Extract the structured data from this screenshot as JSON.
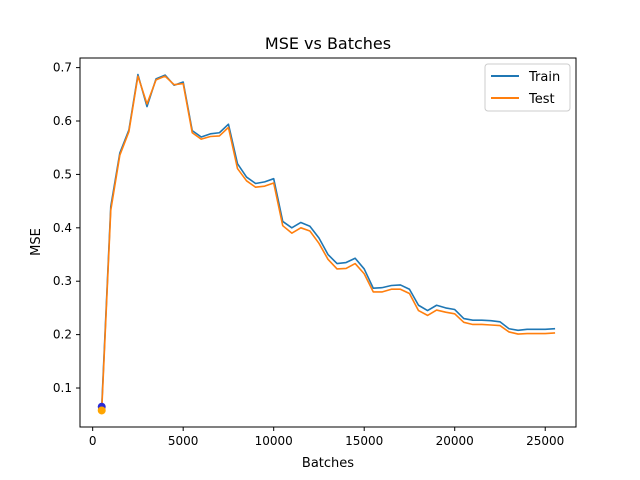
{
  "chart_data": {
    "type": "line",
    "title": "MSE vs Batches",
    "xlabel": "Batches",
    "ylabel": "MSE",
    "xlim": [
      -700,
      26700
    ],
    "ylim": [
      0.027,
      0.718
    ],
    "xticks": [
      0,
      5000,
      10000,
      15000,
      20000,
      25000
    ],
    "xtick_labels": [
      "0",
      "5000",
      "10000",
      "15000",
      "20000",
      "25000"
    ],
    "yticks": [
      0.1,
      0.2,
      0.3,
      0.4,
      0.5,
      0.6,
      0.7
    ],
    "ytick_labels": [
      "0.1",
      "0.2",
      "0.3",
      "0.4",
      "0.5",
      "0.6",
      "0.7"
    ],
    "grid": false,
    "legend": {
      "position": "top-right"
    },
    "series": [
      {
        "name": "Train",
        "color": "#1f77b4",
        "x": [
          500,
          1000,
          1500,
          2000,
          2500,
          3000,
          3500,
          4000,
          4500,
          5000,
          5500,
          6000,
          6500,
          7000,
          7500,
          8000,
          8500,
          9000,
          9500,
          10000,
          10500,
          11000,
          11500,
          12000,
          12500,
          13000,
          13500,
          14000,
          14500,
          15000,
          15500,
          16000,
          16500,
          17000,
          17500,
          18000,
          18500,
          19000,
          19500,
          20000,
          20500,
          21000,
          21500,
          22000,
          22500,
          23000,
          23500,
          24000,
          24500,
          25000,
          25500
        ],
        "y": [
          0.065,
          0.44,
          0.54,
          0.583,
          0.687,
          0.627,
          0.679,
          0.686,
          0.667,
          0.673,
          0.582,
          0.57,
          0.576,
          0.578,
          0.594,
          0.52,
          0.495,
          0.483,
          0.486,
          0.492,
          0.412,
          0.4,
          0.41,
          0.403,
          0.381,
          0.35,
          0.333,
          0.335,
          0.343,
          0.323,
          0.287,
          0.288,
          0.292,
          0.293,
          0.285,
          0.255,
          0.245,
          0.255,
          0.25,
          0.247,
          0.23,
          0.227,
          0.227,
          0.226,
          0.224,
          0.211,
          0.208,
          0.21,
          0.21,
          0.21,
          0.211
        ]
      },
      {
        "name": "Test",
        "color": "#ff7f0e",
        "x": [
          500,
          1000,
          1500,
          2000,
          2500,
          3000,
          3500,
          4000,
          4500,
          5000,
          5500,
          6000,
          6500,
          7000,
          7500,
          8000,
          8500,
          9000,
          9500,
          10000,
          10500,
          11000,
          11500,
          12000,
          12500,
          13000,
          13500,
          14000,
          14500,
          15000,
          15500,
          16000,
          16500,
          17000,
          17500,
          18000,
          18500,
          19000,
          19500,
          20000,
          20500,
          21000,
          21500,
          22000,
          22500,
          23000,
          23500,
          24000,
          24500,
          25000,
          25500
        ],
        "y": [
          0.058,
          0.433,
          0.536,
          0.58,
          0.684,
          0.632,
          0.677,
          0.684,
          0.668,
          0.67,
          0.578,
          0.566,
          0.571,
          0.572,
          0.588,
          0.511,
          0.488,
          0.476,
          0.478,
          0.484,
          0.404,
          0.39,
          0.4,
          0.394,
          0.371,
          0.341,
          0.323,
          0.324,
          0.333,
          0.314,
          0.28,
          0.28,
          0.285,
          0.285,
          0.277,
          0.245,
          0.236,
          0.246,
          0.242,
          0.239,
          0.223,
          0.219,
          0.219,
          0.218,
          0.217,
          0.205,
          0.201,
          0.202,
          0.202,
          0.202,
          0.203
        ]
      }
    ],
    "markers": [
      {
        "x": 500,
        "y": 0.065,
        "color": "#2b2bd6"
      },
      {
        "x": 500,
        "y": 0.058,
        "color": "#ffa500"
      }
    ]
  }
}
